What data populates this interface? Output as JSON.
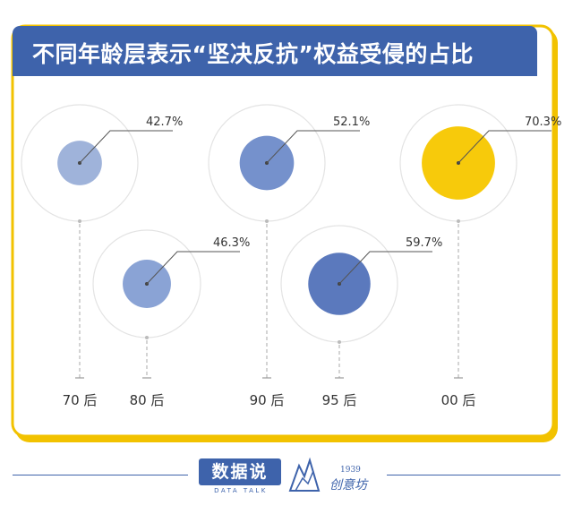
{
  "title": "不同年龄层表示“坚决反抗”权益受侵的占比",
  "colors": {
    "accent": "#3e63ab",
    "yellow": "#f7ca0b",
    "border": "#f2c200"
  },
  "chart_data": {
    "type": "bubble",
    "series": [
      {
        "category": "70后",
        "value": 42.7,
        "label": "42.7%",
        "color": "#9fb3da"
      },
      {
        "category": "80后",
        "value": 46.3,
        "label": "46.3%",
        "color": "#8aa3d5"
      },
      {
        "category": "90后",
        "value": 52.1,
        "label": "52.1%",
        "color": "#7591cc"
      },
      {
        "category": "95后",
        "value": 59.7,
        "label": "59.7%",
        "color": "#5b79bd"
      },
      {
        "category": "00后",
        "value": 70.3,
        "label": "70.3%",
        "color": "#f7ca0b"
      }
    ]
  },
  "footer": {
    "brand": "数据说",
    "brand_sub": "DATA TALK",
    "partner_year": "1939",
    "partner_name": "创意坊"
  }
}
